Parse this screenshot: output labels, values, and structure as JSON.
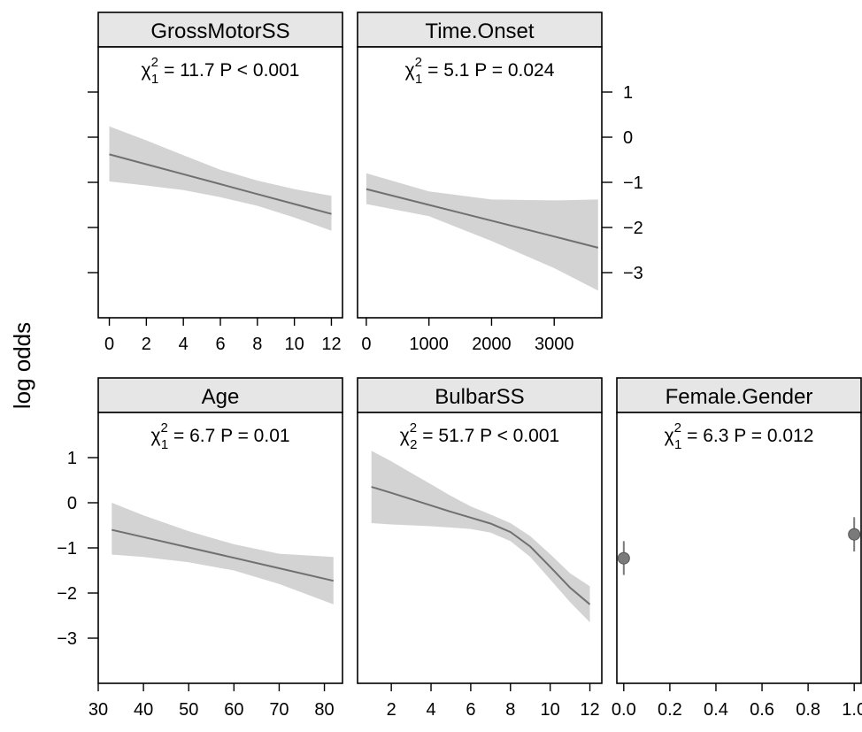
{
  "chart_data": {
    "type": "line",
    "ylabel": "log odds",
    "ylim": [
      -4,
      2
    ],
    "yticks": [
      -3,
      -2,
      -1,
      0,
      1
    ],
    "colors": {
      "band": "#d3d3d3",
      "line": "#707070",
      "point": "#7a7a7a",
      "strip": "#e6e6e6"
    },
    "panels": [
      {
        "name": "GrossMotorSS",
        "stat": {
          "chi_sym": "χ",
          "sup": "2",
          "sub": "1",
          "value": "= 11.7",
          "p": "P < 0.001"
        },
        "xlim": [
          -0.6,
          12.6
        ],
        "xticks": [
          0,
          2,
          4,
          6,
          8,
          10,
          12
        ],
        "x": [
          0,
          2,
          4,
          6,
          8,
          10,
          12
        ],
        "y": [
          -0.38,
          -0.6,
          -0.82,
          -1.04,
          -1.26,
          -1.48,
          -1.7
        ],
        "lower": [
          -0.98,
          -1.07,
          -1.17,
          -1.33,
          -1.52,
          -1.78,
          -2.07
        ],
        "upper": [
          0.24,
          -0.07,
          -0.4,
          -0.72,
          -0.96,
          -1.15,
          -1.3
        ]
      },
      {
        "name": "Time.Onset",
        "stat": {
          "chi_sym": "χ",
          "sup": "2",
          "sub": "1",
          "value": "= 5.1",
          "p": "P = 0.024"
        },
        "xlim": [
          -140,
          3760
        ],
        "xticks": [
          0,
          1000,
          2000,
          3000
        ],
        "x": [
          0,
          1000,
          2000,
          3000,
          3700
        ],
        "y": [
          -1.15,
          -1.5,
          -1.85,
          -2.2,
          -2.45
        ],
        "lower": [
          -1.48,
          -1.75,
          -2.3,
          -2.9,
          -3.4
        ],
        "upper": [
          -0.8,
          -1.2,
          -1.38,
          -1.4,
          -1.38
        ]
      },
      {
        "name": "Age",
        "stat": {
          "chi_sym": "χ",
          "sup": "2",
          "sub": "1",
          "value": "= 6.7",
          "p": "P = 0.01"
        },
        "xlim": [
          30,
          84
        ],
        "xticks": [
          30,
          40,
          50,
          60,
          70,
          80
        ],
        "x": [
          33,
          40,
          50,
          60,
          70,
          82
        ],
        "y": [
          -0.6,
          -0.76,
          -0.99,
          -1.22,
          -1.45,
          -1.73
        ],
        "lower": [
          -1.15,
          -1.2,
          -1.32,
          -1.5,
          -1.8,
          -2.25
        ],
        "upper": [
          0,
          -0.28,
          -0.63,
          -0.92,
          -1.13,
          -1.2
        ]
      },
      {
        "name": "BulbarSS",
        "stat": {
          "chi_sym": "χ",
          "sup": "2",
          "sub": "2",
          "value": "= 51.7",
          "p": "P < 0.001"
        },
        "xlim": [
          0.3,
          12.6
        ],
        "xticks": [
          2,
          4,
          6,
          8,
          10,
          12
        ],
        "x": [
          1,
          2,
          3,
          4,
          5,
          6,
          7,
          8,
          9,
          10,
          11,
          12
        ],
        "y": [
          0.35,
          0.22,
          0.08,
          -0.06,
          -0.2,
          -0.33,
          -0.46,
          -0.65,
          -0.97,
          -1.42,
          -1.88,
          -2.25
        ],
        "lower": [
          -0.45,
          -0.48,
          -0.5,
          -0.52,
          -0.55,
          -0.58,
          -0.66,
          -0.85,
          -1.2,
          -1.7,
          -2.2,
          -2.65
        ],
        "upper": [
          1.15,
          0.92,
          0.66,
          0.41,
          0.15,
          -0.08,
          -0.26,
          -0.45,
          -0.74,
          -1.14,
          -1.56,
          -1.85
        ]
      },
      {
        "name": "Female.Gender",
        "stat": {
          "chi_sym": "χ",
          "sup": "2",
          "sub": "1",
          "value": "= 6.3",
          "p": "P = 0.012"
        },
        "kind": "points",
        "xlim": [
          -0.03,
          1.03
        ],
        "xticks": [
          "0.0",
          "0.2",
          "0.4",
          "0.6",
          "0.8",
          "1.0"
        ],
        "x": [
          0,
          1
        ],
        "y": [
          -1.23,
          -0.7
        ],
        "lower": [
          -1.6,
          -1.08
        ],
        "upper": [
          -0.85,
          -0.32
        ]
      }
    ]
  }
}
